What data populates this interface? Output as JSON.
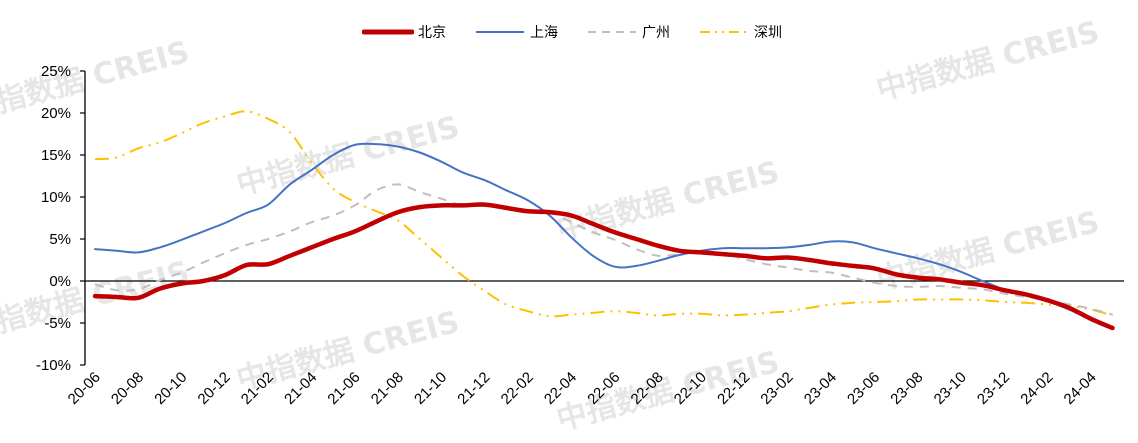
{
  "chart_data": {
    "type": "line",
    "title": "",
    "xlabel": "",
    "ylabel": "",
    "ylim": [
      -0.1,
      0.25
    ],
    "yticks": [
      "25%",
      "20%",
      "15%",
      "10%",
      "5%",
      "0%",
      "-5%",
      "-10%"
    ],
    "ytick_values": [
      0.25,
      0.2,
      0.15,
      0.1,
      0.05,
      0.0,
      -0.05,
      -0.1
    ],
    "grid": false,
    "legend_position": "top",
    "x": [
      "20-06",
      "20-07",
      "20-08",
      "20-09",
      "20-10",
      "20-11",
      "20-12",
      "21-01",
      "21-02",
      "21-03",
      "21-04",
      "21-05",
      "21-06",
      "21-07",
      "21-08",
      "21-09",
      "21-10",
      "21-11",
      "21-12",
      "22-01",
      "22-02",
      "22-03",
      "22-04",
      "22-05",
      "22-06",
      "22-07",
      "22-08",
      "22-09",
      "22-10",
      "22-11",
      "22-12",
      "23-01",
      "23-02",
      "23-03",
      "23-04",
      "23-05",
      "23-06",
      "23-07",
      "23-08",
      "23-09",
      "23-10",
      "23-11",
      "23-12",
      "24-01",
      "24-02",
      "24-03",
      "24-04",
      "24-05"
    ],
    "xtick_labels": [
      "20-06",
      "20-08",
      "20-10",
      "20-12",
      "21-02",
      "21-04",
      "21-06",
      "21-08",
      "21-10",
      "21-12",
      "22-02",
      "22-04",
      "22-06",
      "22-08",
      "22-10",
      "22-12",
      "23-02",
      "23-04",
      "23-06",
      "23-08",
      "23-10",
      "23-12",
      "24-02",
      "24-04"
    ],
    "series": [
      {
        "name": "北京",
        "color": "#C00000",
        "style": "solid-thick",
        "values": [
          -1.8,
          -1.9,
          -2.0,
          -0.9,
          -0.3,
          0.0,
          0.7,
          1.9,
          2.0,
          3.0,
          4.0,
          5.0,
          5.9,
          7.1,
          8.2,
          8.8,
          9.0,
          9.0,
          9.1,
          8.7,
          8.3,
          8.2,
          7.8,
          6.8,
          5.8,
          5.0,
          4.2,
          3.6,
          3.4,
          3.2,
          3.0,
          2.7,
          2.8,
          2.5,
          2.1,
          1.8,
          1.5,
          0.8,
          0.4,
          0.2,
          -0.2,
          -0.5,
          -1.1,
          -1.6,
          -2.3,
          -3.2,
          -4.5,
          -5.6
        ]
      },
      {
        "name": "上海",
        "color": "#4472C4",
        "style": "solid",
        "values": [
          3.8,
          3.6,
          3.4,
          4.0,
          4.9,
          5.9,
          6.9,
          8.1,
          9.1,
          11.5,
          13.2,
          15.0,
          16.2,
          16.3,
          16.0,
          15.3,
          14.2,
          12.9,
          12.0,
          10.8,
          9.6,
          7.8,
          5.2,
          3.0,
          1.7,
          1.8,
          2.4,
          3.1,
          3.6,
          3.9,
          3.9,
          3.9,
          4.0,
          4.3,
          4.7,
          4.6,
          3.9,
          3.3,
          2.7,
          2.0,
          1.1,
          0.0,
          -1.0,
          -1.6,
          -2.4,
          -3.4,
          -4.6,
          -5.5
        ]
      },
      {
        "name": "广州",
        "color": "#BFBFBF",
        "style": "dashed",
        "values": [
          -0.4,
          -1.1,
          -1.0,
          0.1,
          1.0,
          2.2,
          3.3,
          4.3,
          5.0,
          5.9,
          7.0,
          7.8,
          9.0,
          10.8,
          11.5,
          10.6,
          9.8,
          9.0,
          9.0,
          8.6,
          8.4,
          8.2,
          7.0,
          5.8,
          4.9,
          3.8,
          3.0,
          3.2,
          3.5,
          3.2,
          2.6,
          2.0,
          1.6,
          1.2,
          1.0,
          0.4,
          -0.2,
          -0.6,
          -0.7,
          -0.6,
          -0.8,
          -1.0,
          -1.5,
          -1.9,
          -2.3,
          -2.8,
          -3.3,
          -4.0
        ]
      },
      {
        "name": "深圳",
        "color": "#FFC000",
        "style": "dash-dot",
        "values": [
          14.5,
          14.7,
          15.8,
          16.5,
          17.6,
          18.8,
          19.6,
          20.2,
          19.3,
          17.7,
          14.1,
          11.0,
          9.4,
          8.3,
          7.2,
          5.0,
          2.8,
          0.6,
          -1.2,
          -2.8,
          -3.6,
          -4.2,
          -4.0,
          -3.8,
          -3.6,
          -3.8,
          -4.1,
          -3.9,
          -3.9,
          -4.1,
          -4.0,
          -3.8,
          -3.6,
          -3.2,
          -2.8,
          -2.6,
          -2.5,
          -2.4,
          -2.2,
          -2.2,
          -2.2,
          -2.3,
          -2.5,
          -2.6,
          -2.8,
          -3.0,
          -3.4,
          -4.1
        ]
      }
    ]
  },
  "legend": {
    "items": [
      {
        "label": "北京",
        "color": "#C00000"
      },
      {
        "label": "上海",
        "color": "#4472C4"
      },
      {
        "label": "广州",
        "color": "#BFBFBF"
      },
      {
        "label": "深圳",
        "color": "#FFC000"
      }
    ]
  },
  "watermark": {
    "text": "中指数据 CREIS"
  }
}
